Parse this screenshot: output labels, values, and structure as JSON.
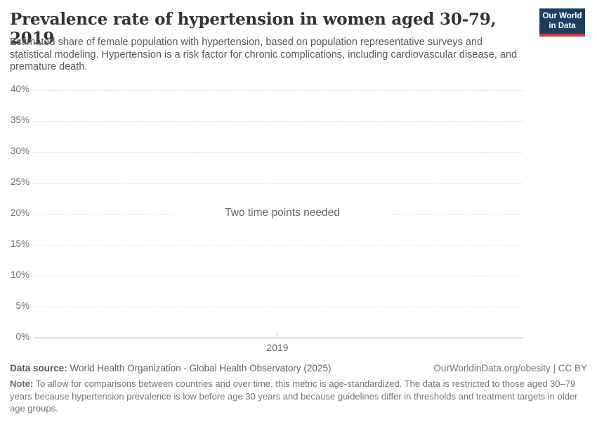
{
  "header": {
    "title": "Prevalence rate of hypertension in women aged 30-79, 2019",
    "subtitle": "Estimated share of female population with hypertension, based on population representative surveys and statistical modeling. Hypertension is a risk factor for chronic complications, including cardiovascular disease, and premature death.",
    "logo": {
      "line1": "Our World",
      "line2": "in Data",
      "bg_color": "#1d3d63",
      "stripe_color": "#d93a3b"
    }
  },
  "chart_data": {
    "type": "line",
    "title": "Prevalence rate of hypertension in women aged 30-79, 2019",
    "series": [],
    "message": "Two time points needed",
    "xlabel": "",
    "ylabel": "",
    "ylim": [
      0,
      40
    ],
    "y_ticks": [
      "40%",
      "35%",
      "30%",
      "25%",
      "20%",
      "15%",
      "10%",
      "5%",
      "0%"
    ],
    "x_ticks": [
      "2019"
    ],
    "grid": "horizontal-dashed",
    "legend": "none",
    "gridline_color": "#e0e0e0",
    "axis_line_color": "#a8a8a8"
  },
  "footer": {
    "data_source_label": "Data source:",
    "data_source": " World Health Organization - Global Health Observatory (2025)",
    "attribution": "OurWorldinData.org/obesity | CC BY",
    "note_label": "Note:",
    "note": " To allow for comparisons between countries and over time, this metric is age-standardized. The data is restricted to those aged 30–79 years because hypertension prevalence is low before age 30 years and because guidelines differ in thresholds and treatment targets in older age groups."
  }
}
